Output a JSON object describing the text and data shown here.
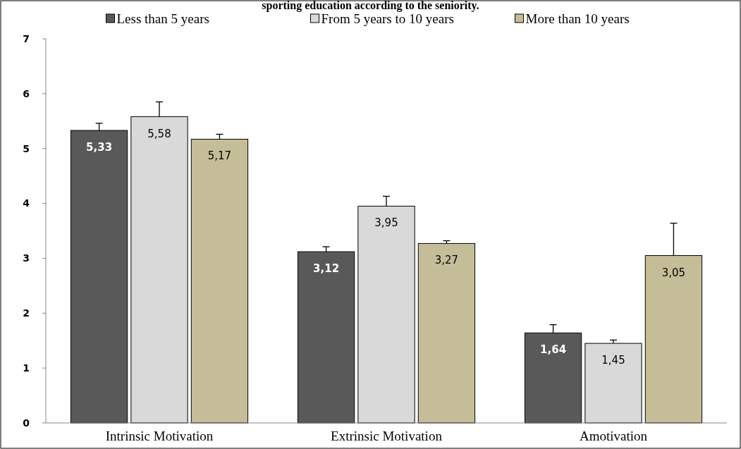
{
  "chart_data": {
    "type": "bar",
    "title": "sporting education according to the seniority.",
    "categories": [
      "Intrinsic Motivation",
      "Extrinsic Motivation",
      "Amotivation"
    ],
    "series": [
      {
        "name": "Less than 5 years",
        "color": "#595959",
        "values": [
          5.33,
          3.12,
          1.64
        ],
        "value_labels": [
          "5,33",
          "3,12",
          "1,64"
        ],
        "errors": [
          [
            5.33,
            5.46
          ],
          [
            3.12,
            3.21
          ],
          [
            1.64,
            1.79
          ]
        ]
      },
      {
        "name": "From 5 years to 10 years",
        "color": "#d9d9d9",
        "values": [
          5.58,
          3.95,
          1.45
        ],
        "value_labels": [
          "5,58",
          "3,95",
          "1,45"
        ],
        "errors": [
          [
            5.58,
            5.85
          ],
          [
            3.95,
            4.13
          ],
          [
            1.45,
            1.51
          ]
        ]
      },
      {
        "name": "More than 10 years",
        "color": "#c4bd97",
        "values": [
          5.17,
          3.27,
          3.05
        ],
        "value_labels": [
          "5,17",
          "3,27",
          "3,05"
        ],
        "errors": [
          [
            5.17,
            5.26
          ],
          [
            3.27,
            3.32
          ],
          [
            3.05,
            3.64
          ]
        ]
      }
    ],
    "ylim": [
      0,
      7
    ],
    "yticks": [
      0,
      1,
      2,
      3,
      4,
      5,
      6,
      7
    ],
    "grid": false,
    "legend": "top"
  }
}
